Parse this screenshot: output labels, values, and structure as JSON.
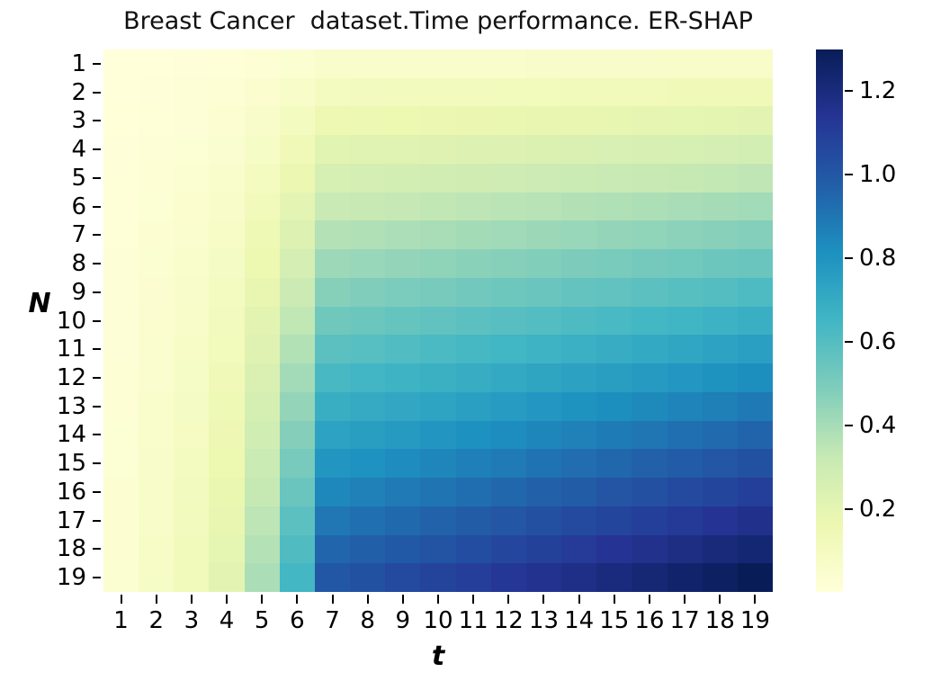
{
  "chart_data": {
    "type": "heatmap",
    "title": "Breast Cancer  dataset.Time performance. ER-SHAP",
    "xlabel": "t",
    "ylabel": "N",
    "x_ticks": [
      1,
      2,
      3,
      4,
      5,
      6,
      7,
      8,
      9,
      10,
      11,
      12,
      13,
      14,
      15,
      16,
      17,
      18,
      19
    ],
    "y_ticks": [
      1,
      2,
      3,
      4,
      5,
      6,
      7,
      8,
      9,
      10,
      11,
      12,
      13,
      14,
      15,
      16,
      17,
      18,
      19
    ],
    "values": [
      [
        0.002,
        0.004,
        0.007,
        0.011,
        0.021,
        0.034,
        0.053,
        0.054,
        0.055,
        0.057,
        0.058,
        0.059,
        0.061,
        0.062,
        0.063,
        0.064,
        0.066,
        0.067,
        0.068
      ],
      [
        0.004,
        0.008,
        0.014,
        0.022,
        0.041,
        0.068,
        0.105,
        0.108,
        0.111,
        0.113,
        0.116,
        0.118,
        0.121,
        0.124,
        0.126,
        0.129,
        0.131,
        0.134,
        0.137
      ],
      [
        0.005,
        0.013,
        0.02,
        0.033,
        0.062,
        0.102,
        0.158,
        0.162,
        0.166,
        0.17,
        0.174,
        0.178,
        0.182,
        0.185,
        0.189,
        0.193,
        0.197,
        0.201,
        0.205
      ],
      [
        0.007,
        0.017,
        0.027,
        0.044,
        0.082,
        0.136,
        0.211,
        0.216,
        0.221,
        0.226,
        0.232,
        0.237,
        0.242,
        0.247,
        0.252,
        0.258,
        0.263,
        0.268,
        0.274
      ],
      [
        0.009,
        0.021,
        0.034,
        0.055,
        0.103,
        0.17,
        0.264,
        0.27,
        0.277,
        0.283,
        0.29,
        0.296,
        0.303,
        0.309,
        0.316,
        0.322,
        0.329,
        0.335,
        0.342
      ],
      [
        0.011,
        0.025,
        0.041,
        0.066,
        0.123,
        0.204,
        0.316,
        0.324,
        0.332,
        0.34,
        0.347,
        0.355,
        0.363,
        0.371,
        0.379,
        0.386,
        0.394,
        0.402,
        0.41
      ],
      [
        0.013,
        0.029,
        0.048,
        0.077,
        0.144,
        0.238,
        0.369,
        0.378,
        0.387,
        0.396,
        0.405,
        0.414,
        0.424,
        0.433,
        0.442,
        0.451,
        0.46,
        0.469,
        0.479
      ],
      [
        0.014,
        0.034,
        0.054,
        0.088,
        0.164,
        0.272,
        0.422,
        0.432,
        0.442,
        0.453,
        0.463,
        0.474,
        0.484,
        0.494,
        0.505,
        0.515,
        0.526,
        0.536,
        0.547
      ],
      [
        0.016,
        0.038,
        0.061,
        0.099,
        0.185,
        0.306,
        0.474,
        0.486,
        0.498,
        0.509,
        0.521,
        0.533,
        0.545,
        0.556,
        0.568,
        0.58,
        0.591,
        0.603,
        0.616
      ],
      [
        0.018,
        0.042,
        0.068,
        0.11,
        0.205,
        0.34,
        0.527,
        0.54,
        0.553,
        0.566,
        0.579,
        0.592,
        0.605,
        0.618,
        0.631,
        0.644,
        0.657,
        0.67,
        0.684
      ],
      [
        0.02,
        0.046,
        0.075,
        0.121,
        0.226,
        0.374,
        0.58,
        0.594,
        0.608,
        0.623,
        0.637,
        0.651,
        0.666,
        0.68,
        0.694,
        0.708,
        0.723,
        0.737,
        0.752
      ],
      [
        0.022,
        0.05,
        0.082,
        0.132,
        0.246,
        0.408,
        0.632,
        0.648,
        0.664,
        0.679,
        0.695,
        0.71,
        0.726,
        0.742,
        0.757,
        0.773,
        0.788,
        0.804,
        0.821
      ],
      [
        0.023,
        0.055,
        0.088,
        0.143,
        0.267,
        0.442,
        0.685,
        0.702,
        0.719,
        0.736,
        0.753,
        0.77,
        0.787,
        0.803,
        0.82,
        0.837,
        0.854,
        0.871,
        0.889
      ],
      [
        0.025,
        0.059,
        0.095,
        0.154,
        0.287,
        0.476,
        0.738,
        0.756,
        0.774,
        0.792,
        0.811,
        0.829,
        0.847,
        0.865,
        0.883,
        0.902,
        0.92,
        0.938,
        0.958
      ],
      [
        0.027,
        0.063,
        0.102,
        0.165,
        0.308,
        0.51,
        0.791,
        0.81,
        0.83,
        0.849,
        0.869,
        0.888,
        0.908,
        0.927,
        0.947,
        0.966,
        0.986,
        1.005,
        1.026
      ],
      [
        0.029,
        0.067,
        0.109,
        0.176,
        0.328,
        0.544,
        0.843,
        0.864,
        0.885,
        0.906,
        0.926,
        0.947,
        0.968,
        0.989,
        1.01,
        1.03,
        1.051,
        1.072,
        1.094
      ],
      [
        0.031,
        0.071,
        0.116,
        0.187,
        0.349,
        0.578,
        0.896,
        0.918,
        0.94,
        0.962,
        0.984,
        1.006,
        1.029,
        1.051,
        1.073,
        1.095,
        1.117,
        1.139,
        1.163
      ],
      [
        0.032,
        0.076,
        0.122,
        0.198,
        0.369,
        0.612,
        0.949,
        0.972,
        0.995,
        1.019,
        1.042,
        1.066,
        1.089,
        1.112,
        1.136,
        1.159,
        1.183,
        1.206,
        1.231
      ],
      [
        0.034,
        0.08,
        0.129,
        0.209,
        0.39,
        0.646,
        1.001,
        1.026,
        1.051,
        1.075,
        1.1,
        1.125,
        1.15,
        1.174,
        1.199,
        1.224,
        1.248,
        1.273,
        1.3
      ]
    ],
    "color_range": [
      0.002,
      1.3
    ],
    "colorbar_ticks": [
      0.2,
      0.4,
      0.6,
      0.8,
      1.0,
      1.2
    ],
    "colormap": {
      "name": "YlGnBu",
      "anchors": [
        "#ffffd9",
        "#edf8b1",
        "#c7e9b4",
        "#7fcdbb",
        "#41b6c4",
        "#1d91c0",
        "#225ea8",
        "#253494",
        "#081d58"
      ]
    },
    "background": "#ffffff",
    "grid": false,
    "legend": "colorbar-right"
  }
}
